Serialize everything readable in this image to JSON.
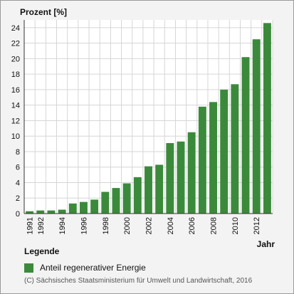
{
  "chart_data": {
    "type": "bar",
    "ylabel": "Prozent [%]",
    "xlabel": "Jahr",
    "ylim": [
      0,
      25
    ],
    "yticks": [
      0,
      2,
      4,
      6,
      8,
      10,
      12,
      14,
      16,
      18,
      20,
      22,
      24
    ],
    "grid": true,
    "categories": [
      "1991",
      "1992",
      "1993",
      "1994",
      "1995",
      "1996",
      "1997",
      "1998",
      "1999",
      "2000",
      "2001",
      "2002",
      "2003",
      "2004",
      "2005",
      "2006",
      "2007",
      "2008",
      "2009",
      "2010",
      "2011",
      "2012",
      "2013"
    ],
    "xtick_labels": [
      "1991",
      "1992",
      "1994",
      "1996",
      "1998",
      "2000",
      "2002",
      "2004",
      "2006",
      "2008",
      "2010",
      "2012"
    ],
    "series": [
      {
        "name": "Anteil regenerativer Energie",
        "color": "#3b8a3b",
        "values": [
          0.3,
          0.4,
          0.4,
          0.5,
          1.3,
          1.5,
          1.8,
          2.8,
          3.3,
          3.9,
          4.7,
          6.1,
          6.3,
          9.1,
          9.3,
          10.5,
          13.8,
          14.4,
          16.0,
          16.7,
          20.2,
          22.5,
          24.6
        ]
      }
    ]
  },
  "legend": {
    "title": "Legende",
    "item_label": "Anteil regenerativer Energie",
    "item_color": "#3b8a3b"
  },
  "copyright": "(C) Sächsisches Staatsministerium für Umwelt und Landwirtschaft, 2016"
}
